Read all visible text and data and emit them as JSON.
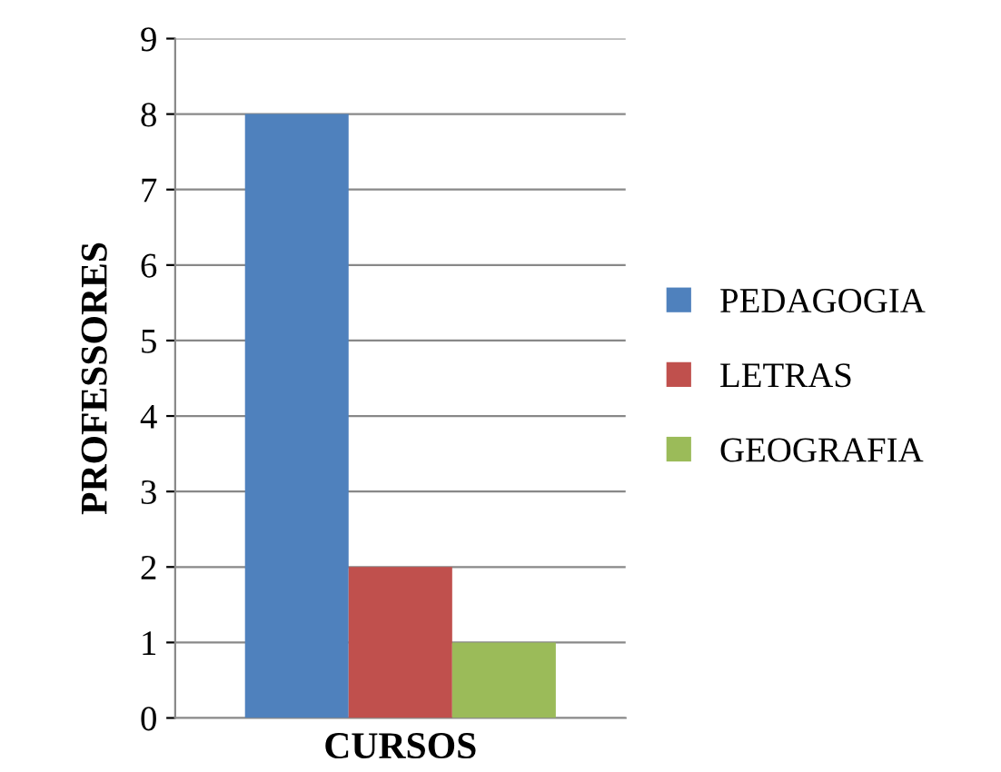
{
  "chart_data": {
    "type": "bar",
    "xlabel": "CURSOS",
    "ylabel": "PROFESSORES",
    "categories": [
      null
    ],
    "series": [
      {
        "name": "PEDAGOGIA",
        "color": "#4f81bd",
        "values": [
          8
        ]
      },
      {
        "name": "LETRAS",
        "color": "#c0504d",
        "values": [
          2
        ]
      },
      {
        "name": "GEOGRAFIA",
        "color": "#9bbb59",
        "values": [
          1
        ]
      }
    ],
    "ylim": [
      0,
      9
    ],
    "yticks": [
      0,
      1,
      2,
      3,
      4,
      5,
      6,
      7,
      8,
      9
    ],
    "grid": "y",
    "legend": "right"
  }
}
